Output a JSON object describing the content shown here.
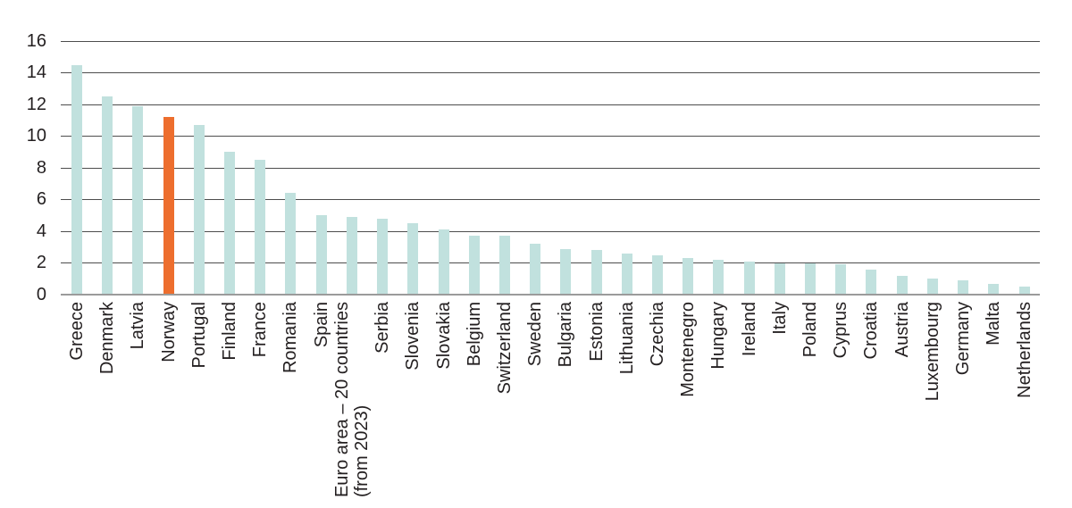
{
  "chart_data": {
    "type": "bar",
    "title": "",
    "xlabel": "",
    "ylabel": "",
    "ylim": [
      0,
      16
    ],
    "yticks": [
      0,
      2,
      4,
      6,
      8,
      10,
      12,
      14,
      16
    ],
    "grid": true,
    "legend_position": "none",
    "highlighted_category": "Norway",
    "categories": [
      "Greece",
      "Denmark",
      "Latvia",
      "Norway",
      "Portugal",
      "Finland",
      "France",
      "Romania",
      "Spain",
      "Euro area – 20 countries\n(from 2023)",
      "Serbia",
      "Slovenia",
      "Slovakia",
      "Belgium",
      "Switzerland",
      "Sweden",
      "Bulgaria",
      "Estonia",
      "Lithuania",
      "Czechia",
      "Montenegro",
      "Hungary",
      "Ireland",
      "Italy",
      "Poland",
      "Cyprus",
      "Croatia",
      "Austria",
      "Luxembourg",
      "Germany",
      "Malta",
      "Netherlands"
    ],
    "values": [
      14.5,
      12.5,
      11.9,
      11.2,
      10.7,
      9.0,
      8.5,
      6.4,
      5.0,
      4.9,
      4.8,
      4.5,
      4.1,
      3.7,
      3.7,
      3.2,
      2.9,
      2.8,
      2.6,
      2.5,
      2.3,
      2.2,
      2.1,
      2.0,
      2.0,
      1.9,
      1.6,
      1.2,
      1.0,
      0.9,
      0.7,
      0.5
    ],
    "colors": {
      "bar": "#c1e1de",
      "highlight": "#ed6e2e",
      "gridline": "#4d4d4d",
      "zeroline": "#9b9b9b",
      "text": "#231f20"
    }
  }
}
